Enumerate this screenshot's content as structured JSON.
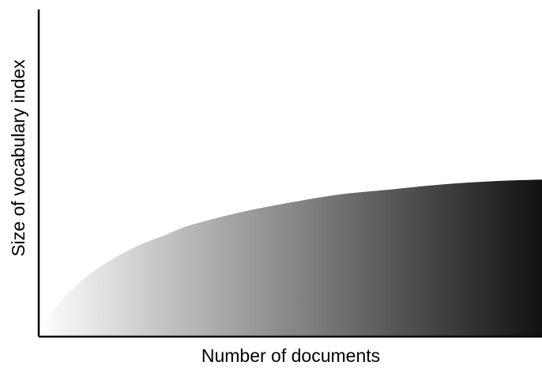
{
  "chart_data": {
    "type": "area",
    "title": "",
    "xlabel": "Number of documents",
    "ylabel": "Size of vocabulary index",
    "xlim": [
      0,
      1
    ],
    "ylim": [
      0,
      1
    ],
    "grid": false,
    "legend": "none",
    "tick_labels": false,
    "series": [
      {
        "x": [
          0,
          0.02,
          0.05,
          0.1,
          0.15,
          0.2,
          0.25,
          0.3,
          0.4,
          0.5,
          0.6,
          0.7,
          0.8,
          0.9,
          1.0
        ],
        "values": [
          0,
          0.06,
          0.12,
          0.19,
          0.24,
          0.28,
          0.31,
          0.34,
          0.38,
          0.41,
          0.435,
          0.45,
          0.465,
          0.475,
          0.48
        ]
      }
    ],
    "fill_gradient": {
      "start_color": "#ffffff",
      "end_color": "#111111",
      "direction": "left-to-right"
    },
    "axis_color": "#000000"
  }
}
